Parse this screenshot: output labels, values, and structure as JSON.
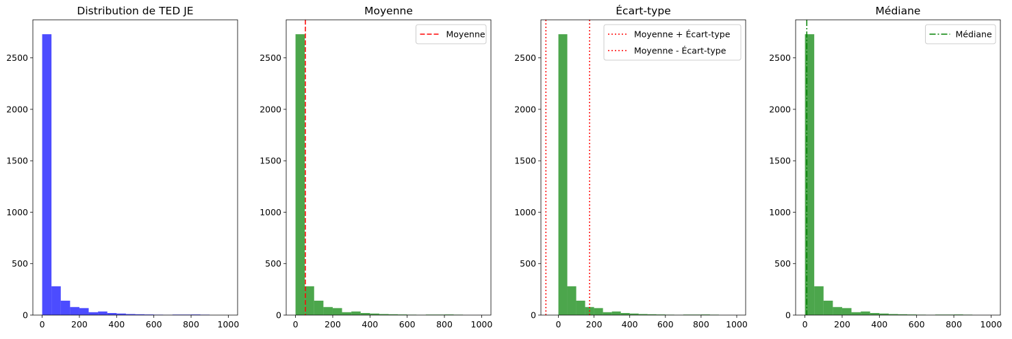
{
  "chart_data": [
    {
      "type": "bar",
      "title": "Distribution de TED JE",
      "xlabel": "",
      "ylabel": "",
      "xlim": [
        -50,
        1050
      ],
      "ylim": [
        0,
        2870
      ],
      "xticks": [
        0,
        200,
        400,
        600,
        800,
        1000
      ],
      "yticks": [
        0,
        500,
        1000,
        1500,
        2000,
        2500
      ],
      "bar_color": "#0000ff",
      "bar_alpha": 0.7,
      "bins": [
        [
          0,
          50
        ],
        [
          50,
          100
        ],
        [
          100,
          150
        ],
        [
          150,
          200
        ],
        [
          200,
          250
        ],
        [
          250,
          300
        ],
        [
          300,
          350
        ],
        [
          350,
          400
        ],
        [
          400,
          450
        ],
        [
          450,
          500
        ],
        [
          500,
          550
        ],
        [
          550,
          600
        ],
        [
          600,
          650
        ],
        [
          650,
          700
        ],
        [
          700,
          750
        ],
        [
          750,
          800
        ],
        [
          800,
          850
        ],
        [
          850,
          900
        ],
        [
          900,
          950
        ],
        [
          950,
          1000
        ]
      ],
      "values": [
        2730,
        280,
        140,
        78,
        68,
        28,
        35,
        20,
        15,
        10,
        8,
        6,
        4,
        2,
        5,
        5,
        6,
        4,
        0,
        0
      ],
      "lines": [],
      "legend": null
    },
    {
      "type": "bar",
      "title": "Moyenne",
      "xlabel": "",
      "ylabel": "",
      "xlim": [
        -50,
        1050
      ],
      "ylim": [
        0,
        2870
      ],
      "xticks": [
        0,
        200,
        400,
        600,
        800,
        1000
      ],
      "yticks": [
        0,
        500,
        1000,
        1500,
        2000,
        2500
      ],
      "bar_color": "#008000",
      "bar_alpha": 0.7,
      "bins": [
        [
          0,
          50
        ],
        [
          50,
          100
        ],
        [
          100,
          150
        ],
        [
          150,
          200
        ],
        [
          200,
          250
        ],
        [
          250,
          300
        ],
        [
          300,
          350
        ],
        [
          350,
          400
        ],
        [
          400,
          450
        ],
        [
          450,
          500
        ],
        [
          500,
          550
        ],
        [
          550,
          600
        ],
        [
          600,
          650
        ],
        [
          650,
          700
        ],
        [
          700,
          750
        ],
        [
          750,
          800
        ],
        [
          800,
          850
        ],
        [
          850,
          900
        ],
        [
          900,
          950
        ],
        [
          950,
          1000
        ]
      ],
      "values": [
        2730,
        280,
        140,
        78,
        68,
        28,
        35,
        20,
        15,
        10,
        8,
        6,
        4,
        2,
        5,
        5,
        6,
        4,
        0,
        0
      ],
      "lines": [
        {
          "label": "Moyenne",
          "x": 53,
          "color": "#ff0000",
          "style": "dashed"
        }
      ],
      "legend": "upper right"
    },
    {
      "type": "bar",
      "title": "Écart-type",
      "xlabel": "",
      "ylabel": "",
      "xlim": [
        -98,
        1050
      ],
      "ylim": [
        0,
        2870
      ],
      "xticks": [
        0,
        200,
        400,
        600,
        800,
        1000
      ],
      "yticks": [
        0,
        500,
        1000,
        1500,
        2000,
        2500
      ],
      "bar_color": "#008000",
      "bar_alpha": 0.7,
      "bins": [
        [
          0,
          50
        ],
        [
          50,
          100
        ],
        [
          100,
          150
        ],
        [
          150,
          200
        ],
        [
          200,
          250
        ],
        [
          250,
          300
        ],
        [
          300,
          350
        ],
        [
          350,
          400
        ],
        [
          400,
          450
        ],
        [
          450,
          500
        ],
        [
          500,
          550
        ],
        [
          550,
          600
        ],
        [
          600,
          650
        ],
        [
          650,
          700
        ],
        [
          700,
          750
        ],
        [
          750,
          800
        ],
        [
          800,
          850
        ],
        [
          850,
          900
        ],
        [
          900,
          950
        ],
        [
          950,
          1000
        ]
      ],
      "values": [
        2730,
        280,
        140,
        78,
        68,
        28,
        35,
        20,
        15,
        10,
        8,
        6,
        4,
        2,
        5,
        5,
        6,
        4,
        0,
        0
      ],
      "lines": [
        {
          "label": "Moyenne + Écart-type",
          "x": 175,
          "color": "#ff0000",
          "style": "dotted"
        },
        {
          "label": "Moyenne - Écart-type",
          "x": -70,
          "color": "#ff0000",
          "style": "dotted"
        }
      ],
      "legend": "upper right"
    },
    {
      "type": "bar",
      "title": "Médiane",
      "xlabel": "",
      "ylabel": "",
      "xlim": [
        -50,
        1050
      ],
      "ylim": [
        0,
        2870
      ],
      "xticks": [
        0,
        200,
        400,
        600,
        800,
        1000
      ],
      "yticks": [
        0,
        500,
        1000,
        1500,
        2000,
        2500
      ],
      "bar_color": "#008000",
      "bar_alpha": 0.7,
      "bins": [
        [
          0,
          50
        ],
        [
          50,
          100
        ],
        [
          100,
          150
        ],
        [
          150,
          200
        ],
        [
          200,
          250
        ],
        [
          250,
          300
        ],
        [
          300,
          350
        ],
        [
          350,
          400
        ],
        [
          400,
          450
        ],
        [
          450,
          500
        ],
        [
          500,
          550
        ],
        [
          550,
          600
        ],
        [
          600,
          650
        ],
        [
          650,
          700
        ],
        [
          700,
          750
        ],
        [
          750,
          800
        ],
        [
          800,
          850
        ],
        [
          850,
          900
        ],
        [
          900,
          950
        ],
        [
          950,
          1000
        ]
      ],
      "values": [
        2730,
        280,
        140,
        78,
        68,
        28,
        35,
        20,
        15,
        10,
        8,
        6,
        4,
        2,
        5,
        5,
        6,
        4,
        0,
        0
      ],
      "lines": [
        {
          "label": "Médiane",
          "x": 10,
          "color": "#008000",
          "style": "dashdot"
        }
      ],
      "legend": "upper right"
    }
  ]
}
